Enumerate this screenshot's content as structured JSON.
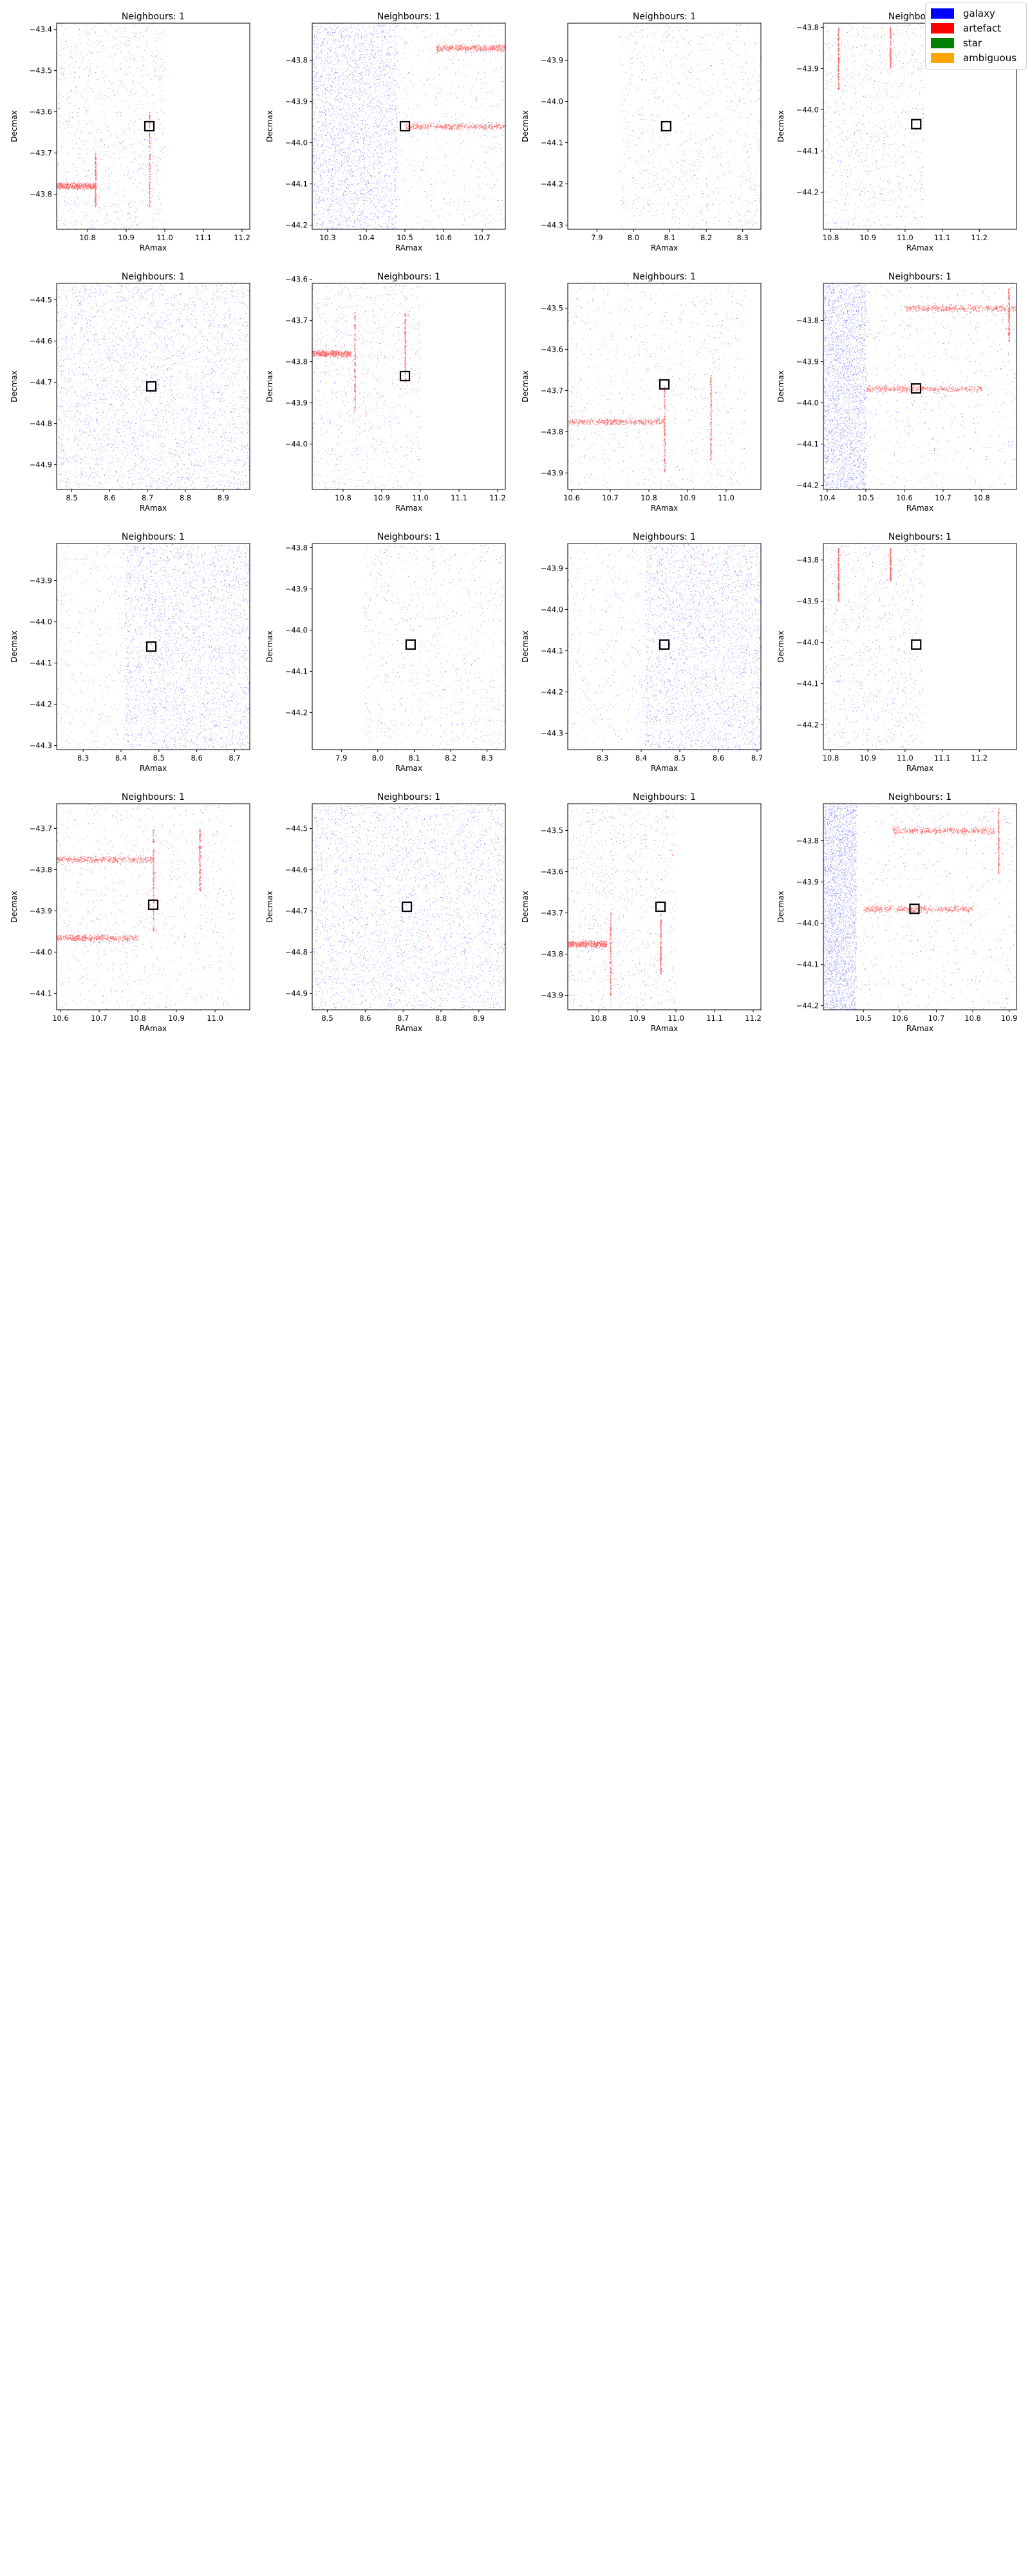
{
  "legend": {
    "items": [
      {
        "label": "galaxy",
        "color": "#0000ff"
      },
      {
        "label": "artefact",
        "color": "#ff0000"
      },
      {
        "label": "star",
        "color": "#008000"
      },
      {
        "label": "ambiguous",
        "color": "#ffa500"
      }
    ]
  },
  "chart_data": [
    {
      "type": "scatter",
      "title": "Neighbours: 1",
      "xlabel": "RAmax",
      "ylabel": "Decmax",
      "xlim": [
        10.72,
        11.22
      ],
      "ylim": [
        -43.885,
        -43.385
      ],
      "xticks": [
        10.8,
        10.9,
        11.0,
        11.1,
        11.2
      ],
      "yticks": [
        -43.4,
        -43.5,
        -43.6,
        -43.7,
        -43.8
      ],
      "data_x_range": [
        10.72,
        11.0
      ],
      "marker": {
        "x": 10.96,
        "y": -43.635
      },
      "features": [
        {
          "kind": "hband",
          "y": -43.78,
          "x0": 10.72,
          "x1": 10.82
        },
        {
          "kind": "vline",
          "x": 10.82,
          "y0": -43.83,
          "y1": -43.7
        },
        {
          "kind": "vline",
          "x": 10.96,
          "y0": -43.83,
          "y1": -43.6
        }
      ]
    },
    {
      "type": "scatter",
      "title": "Neighbours: 1",
      "xlabel": "RAmax",
      "ylabel": "Decmax",
      "xlim": [
        10.26,
        10.76
      ],
      "ylim": [
        -44.21,
        -43.71
      ],
      "xticks": [
        10.3,
        10.4,
        10.5,
        10.6,
        10.7
      ],
      "yticks": [
        -43.8,
        -43.9,
        -44.0,
        -44.1,
        -44.2
      ],
      "data_x_range": [
        10.26,
        10.76
      ],
      "dense_x_max": 10.48,
      "marker": {
        "x": 10.5,
        "y": -43.96
      },
      "features": [
        {
          "kind": "hband",
          "y": -43.77,
          "x0": 10.58,
          "x1": 10.76
        },
        {
          "kind": "hband",
          "y": -43.96,
          "x0": 10.5,
          "x1": 10.76
        }
      ]
    },
    {
      "type": "scatter",
      "title": "Neighbours: 1",
      "xlabel": "RAmax",
      "ylabel": "Decmax",
      "xlim": [
        7.82,
        8.35
      ],
      "ylim": [
        -44.31,
        -43.81
      ],
      "xticks": [
        7.9,
        8.0,
        8.1,
        8.2,
        8.3
      ],
      "yticks": [
        -43.9,
        -44.0,
        -44.1,
        -44.2,
        -44.3
      ],
      "data_x_range": [
        7.96,
        8.35
      ],
      "marker": {
        "x": 8.09,
        "y": -44.06
      },
      "features": []
    },
    {
      "type": "scatter",
      "title": "Neighbours: 1",
      "xlabel": "RAmax",
      "ylabel": "Decmax",
      "xlim": [
        10.78,
        11.3
      ],
      "ylim": [
        -44.29,
        -43.79
      ],
      "xticks": [
        10.8,
        10.9,
        11.0,
        11.1,
        11.2
      ],
      "yticks": [
        -43.8,
        -43.9,
        -44.0,
        -44.1,
        -44.2
      ],
      "data_x_range": [
        10.78,
        11.05
      ],
      "marker": {
        "x": 11.03,
        "y": -44.035
      },
      "features": [
        {
          "kind": "vline",
          "x": 10.82,
          "y0": -43.95,
          "y1": -43.8
        },
        {
          "kind": "vline",
          "x": 10.96,
          "y0": -43.9,
          "y1": -43.8
        }
      ]
    },
    {
      "type": "scatter",
      "title": "Neighbours: 1",
      "xlabel": "RAmax",
      "ylabel": "Decmax",
      "xlim": [
        8.46,
        8.97
      ],
      "ylim": [
        -44.96,
        -44.46
      ],
      "xticks": [
        8.5,
        8.6,
        8.7,
        8.8,
        8.9
      ],
      "yticks": [
        -44.5,
        -44.6,
        -44.7,
        -44.8,
        -44.9
      ],
      "data_x_range": [
        8.46,
        8.97
      ],
      "dense_x_max": 8.97,
      "marker": {
        "x": 8.71,
        "y": -44.71
      },
      "features": []
    },
    {
      "type": "scatter",
      "title": "Neighbours: 1",
      "xlabel": "RAmax",
      "ylabel": "Decmax",
      "xlim": [
        10.72,
        11.22
      ],
      "ylim": [
        -44.11,
        -43.61
      ],
      "xticks": [
        10.8,
        10.9,
        11.0,
        11.1,
        11.2
      ],
      "yticks": [
        -43.6,
        -43.7,
        -43.8,
        -43.9,
        -44.0
      ],
      "data_x_range": [
        10.72,
        11.0
      ],
      "marker": {
        "x": 10.96,
        "y": -43.835
      },
      "features": [
        {
          "kind": "hband",
          "y": -43.78,
          "x0": 10.72,
          "x1": 10.82
        },
        {
          "kind": "vline",
          "x": 10.83,
          "y0": -43.92,
          "y1": -43.68
        },
        {
          "kind": "vline",
          "x": 10.96,
          "y0": -43.85,
          "y1": -43.68
        }
      ]
    },
    {
      "type": "scatter",
      "title": "Neighbours: 1",
      "xlabel": "RAmax",
      "ylabel": "Decmax",
      "xlim": [
        10.59,
        11.09
      ],
      "ylim": [
        -43.94,
        -43.44
      ],
      "xticks": [
        10.6,
        10.7,
        10.8,
        10.9,
        11.0
      ],
      "yticks": [
        -43.5,
        -43.6,
        -43.7,
        -43.8,
        -43.9
      ],
      "data_x_range": [
        10.59,
        11.05
      ],
      "marker": {
        "x": 10.84,
        "y": -43.685
      },
      "features": [
        {
          "kind": "hband",
          "y": -43.775,
          "x0": 10.59,
          "x1": 10.84
        },
        {
          "kind": "vline",
          "x": 10.84,
          "y0": -43.9,
          "y1": -43.69
        },
        {
          "kind": "vline",
          "x": 10.96,
          "y0": -43.87,
          "y1": -43.66
        }
      ]
    },
    {
      "type": "scatter",
      "title": "Neighbours: 1",
      "xlabel": "RAmax",
      "ylabel": "Decmax",
      "xlim": [
        10.39,
        10.89
      ],
      "ylim": [
        -44.21,
        -43.71
      ],
      "xticks": [
        10.4,
        10.5,
        10.6,
        10.7,
        10.8
      ],
      "yticks": [
        -43.8,
        -43.9,
        -44.0,
        -44.1,
        -44.2
      ],
      "data_x_range": [
        10.39,
        10.89
      ],
      "dense_x_max": 10.5,
      "marker": {
        "x": 10.63,
        "y": -43.965
      },
      "features": [
        {
          "kind": "hband",
          "y": -43.77,
          "x0": 10.6,
          "x1": 10.89
        },
        {
          "kind": "hband",
          "y": -43.965,
          "x0": 10.5,
          "x1": 10.8
        },
        {
          "kind": "vline",
          "x": 10.87,
          "y0": -43.85,
          "y1": -43.72
        }
      ]
    },
    {
      "type": "scatter",
      "title": "Neighbours: 1",
      "xlabel": "RAmax",
      "ylabel": "Decmax",
      "xlim": [
        8.23,
        8.74
      ],
      "ylim": [
        -44.31,
        -43.81
      ],
      "xticks": [
        8.3,
        8.4,
        8.5,
        8.6,
        8.7
      ],
      "yticks": [
        -43.9,
        -44.0,
        -44.1,
        -44.2,
        -44.3
      ],
      "data_x_range": [
        8.23,
        8.74
      ],
      "dense_x_max": 8.74,
      "dense_x_min": 8.41,
      "marker": {
        "x": 8.48,
        "y": -44.06
      },
      "features": []
    },
    {
      "type": "scatter",
      "title": "Neighbours: 1",
      "xlabel": "RAmax",
      "ylabel": "Decmax",
      "xlim": [
        7.82,
        8.35
      ],
      "ylim": [
        -44.29,
        -43.79
      ],
      "xticks": [
        7.9,
        8.0,
        8.1,
        8.2,
        8.3
      ],
      "yticks": [
        -43.8,
        -43.9,
        -44.0,
        -44.1,
        -44.2
      ],
      "data_x_range": [
        7.96,
        8.35
      ],
      "marker": {
        "x": 8.09,
        "y": -44.035
      },
      "features": []
    },
    {
      "type": "scatter",
      "title": "Neighbours: 1",
      "xlabel": "RAmax",
      "ylabel": "Decmax",
      "xlim": [
        8.21,
        8.71
      ],
      "ylim": [
        -44.34,
        -43.84
      ],
      "xticks": [
        8.3,
        8.4,
        8.5,
        8.6,
        8.7
      ],
      "yticks": [
        -43.9,
        -44.0,
        -44.1,
        -44.2,
        -44.3
      ],
      "data_x_range": [
        8.21,
        8.71
      ],
      "dense_x_max": 8.71,
      "dense_x_min": 8.41,
      "marker": {
        "x": 8.46,
        "y": -44.085
      },
      "features": []
    },
    {
      "type": "scatter",
      "title": "Neighbours: 1",
      "xlabel": "RAmax",
      "ylabel": "Decmax",
      "xlim": [
        10.78,
        11.3
      ],
      "ylim": [
        -44.26,
        -43.76
      ],
      "xticks": [
        10.8,
        10.9,
        11.0,
        11.1,
        11.2
      ],
      "yticks": [
        -43.8,
        -43.9,
        -44.0,
        -44.1,
        -44.2
      ],
      "data_x_range": [
        10.78,
        11.05
      ],
      "marker": {
        "x": 11.03,
        "y": -44.005
      },
      "features": [
        {
          "kind": "vline",
          "x": 10.82,
          "y0": -43.9,
          "y1": -43.77
        },
        {
          "kind": "vline",
          "x": 10.96,
          "y0": -43.85,
          "y1": -43.77
        }
      ]
    },
    {
      "type": "scatter",
      "title": "Neighbours: 1",
      "xlabel": "RAmax",
      "ylabel": "Decmax",
      "xlim": [
        10.59,
        11.09
      ],
      "ylim": [
        -44.14,
        -43.64
      ],
      "xticks": [
        10.6,
        10.7,
        10.8,
        10.9,
        11.0
      ],
      "yticks": [
        -43.7,
        -43.8,
        -43.9,
        -44.0,
        -44.1
      ],
      "data_x_range": [
        10.59,
        11.05
      ],
      "marker": {
        "x": 10.84,
        "y": -43.885
      },
      "features": [
        {
          "kind": "hband",
          "y": -43.775,
          "x0": 10.59,
          "x1": 10.84
        },
        {
          "kind": "hband",
          "y": -43.965,
          "x0": 10.59,
          "x1": 10.8
        },
        {
          "kind": "vline",
          "x": 10.84,
          "y0": -43.95,
          "y1": -43.7
        },
        {
          "kind": "vline",
          "x": 10.96,
          "y0": -43.85,
          "y1": -43.7
        }
      ]
    },
    {
      "type": "scatter",
      "title": "Neighbours: 1",
      "xlabel": "RAmax",
      "ylabel": "Decmax",
      "xlim": [
        8.46,
        8.97
      ],
      "ylim": [
        -44.94,
        -44.44
      ],
      "xticks": [
        8.5,
        8.6,
        8.7,
        8.8,
        8.9
      ],
      "yticks": [
        -44.5,
        -44.6,
        -44.7,
        -44.8,
        -44.9
      ],
      "data_x_range": [
        8.46,
        8.97
      ],
      "dense_x_max": 8.97,
      "marker": {
        "x": 8.71,
        "y": -44.69
      },
      "features": []
    },
    {
      "type": "scatter",
      "title": "Neighbours: 1",
      "xlabel": "RAmax",
      "ylabel": "Decmax",
      "xlim": [
        10.72,
        11.22
      ],
      "ylim": [
        -43.935,
        -43.435
      ],
      "xticks": [
        10.8,
        10.9,
        11.0,
        11.1,
        11.2
      ],
      "yticks": [
        -43.5,
        -43.6,
        -43.7,
        -43.8,
        -43.9
      ],
      "data_x_range": [
        10.72,
        11.0
      ],
      "marker": {
        "x": 10.96,
        "y": -43.685
      },
      "features": [
        {
          "kind": "hband",
          "y": -43.775,
          "x0": 10.72,
          "x1": 10.82
        },
        {
          "kind": "vline",
          "x": 10.83,
          "y0": -43.9,
          "y1": -43.7
        },
        {
          "kind": "vline",
          "x": 10.96,
          "y0": -43.85,
          "y1": -43.7
        }
      ]
    },
    {
      "type": "scatter",
      "title": "Neighbours: 1",
      "xlabel": "RAmax",
      "ylabel": "Decmax",
      "xlim": [
        10.39,
        10.92
      ],
      "ylim": [
        -44.21,
        -43.71
      ],
      "xticks": [
        10.5,
        10.6,
        10.7,
        10.8,
        10.9
      ],
      "yticks": [
        -43.8,
        -43.9,
        -44.0,
        -44.1,
        -44.2
      ],
      "data_x_range": [
        10.39,
        10.92
      ],
      "dense_x_max": 10.48,
      "marker": {
        "x": 10.64,
        "y": -43.965
      },
      "features": [
        {
          "kind": "hband",
          "y": -43.775,
          "x0": 10.58,
          "x1": 10.86
        },
        {
          "kind": "hband",
          "y": -43.965,
          "x0": 10.5,
          "x1": 10.8
        },
        {
          "kind": "vline",
          "x": 10.87,
          "y0": -43.88,
          "y1": -43.72
        }
      ]
    }
  ]
}
